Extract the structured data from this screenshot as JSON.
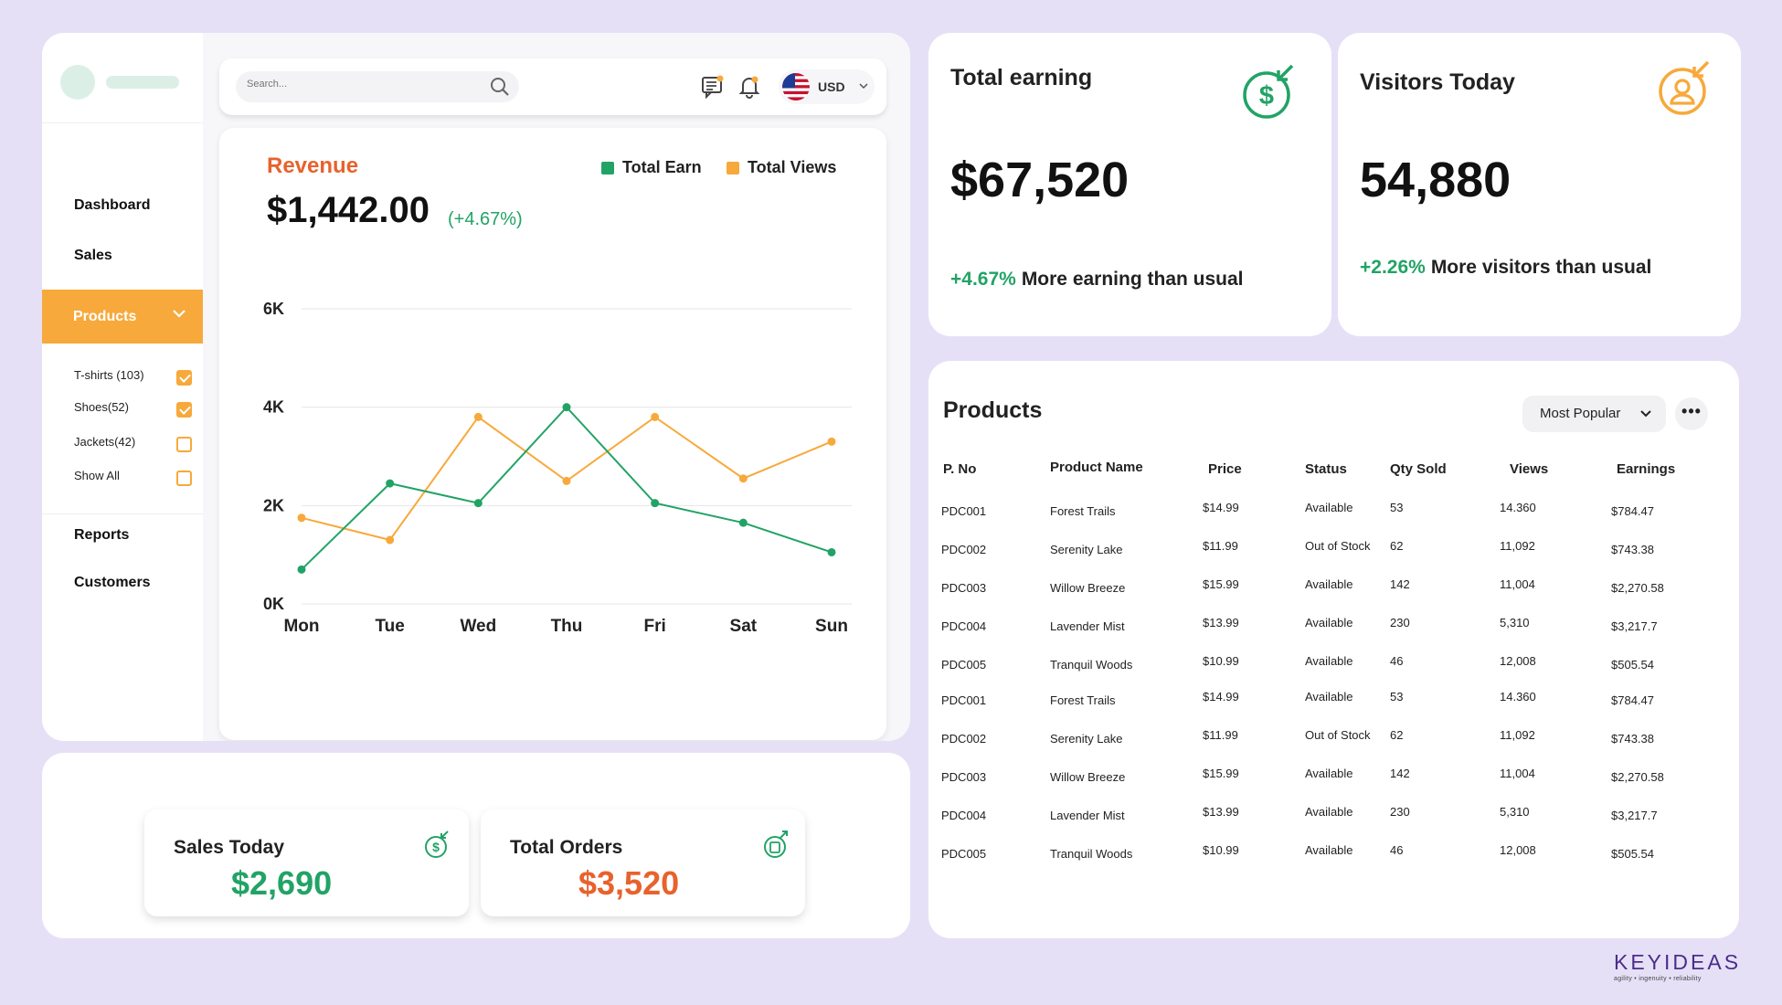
{
  "sidebar": {
    "items": [
      {
        "label": "Dashboard"
      },
      {
        "label": "Sales"
      },
      {
        "label": "Products"
      },
      {
        "label": "Reports"
      },
      {
        "label": "Customers"
      }
    ],
    "filters": [
      {
        "label": "T-shirts (103)",
        "checked": true
      },
      {
        "label": "Shoes(52)",
        "checked": true
      },
      {
        "label": "Jackets(42)",
        "checked": false
      },
      {
        "label": "Show All",
        "checked": false
      }
    ]
  },
  "topbar": {
    "search_placeholder": "Search...",
    "currency": "USD",
    "icons": [
      "search-icon",
      "chat-icon",
      "bell-icon",
      "us-flag-icon",
      "chevron-down-icon"
    ]
  },
  "revenue": {
    "title": "Revenue",
    "value": "$1,442.00",
    "change": "(+4.67%)",
    "legend": [
      "Total Earn",
      "Total Views"
    ]
  },
  "chart_data": {
    "type": "line",
    "title": "Revenue",
    "categories": [
      "Mon",
      "Tue",
      "Wed",
      "Thu",
      "Fri",
      "Sat",
      "Sun"
    ],
    "yticks": [
      "6K",
      "4K",
      "2K",
      "0K"
    ],
    "ylim": [
      0,
      6000
    ],
    "grid": true,
    "legend_position": "top-right",
    "series": [
      {
        "name": "Total Earn",
        "color": "#22a366",
        "values": [
          700,
          2450,
          2050,
          4000,
          2050,
          1650,
          1050
        ]
      },
      {
        "name": "Total Views",
        "color": "#f7a93b",
        "values": [
          1750,
          1300,
          3800,
          2500,
          3800,
          2550,
          3300
        ]
      }
    ]
  },
  "sales_today": {
    "title": "Sales Today",
    "value": "$2,690",
    "color": "#22a366"
  },
  "total_orders": {
    "title": "Total Orders",
    "value": "$3,520",
    "color": "#e8622c"
  },
  "total_earning": {
    "title": "Total earning",
    "value": "$67,520",
    "pct": "+4.67%",
    "note": "More earning than usual",
    "icon_color": "#22a366"
  },
  "visitors_today": {
    "title": "Visitors Today",
    "value": "54,880",
    "pct": "+2.26%",
    "note": "More visitors than usual",
    "icon_color": "#f7a93b"
  },
  "products": {
    "title": "Products",
    "sort_label": "Most Popular",
    "columns": [
      "P. No",
      "Product Name",
      "Price",
      "Status",
      "Qty Sold",
      "Views",
      "Earnings"
    ],
    "rows": [
      [
        "PDC001",
        "Forest Trails",
        "$14.99",
        "Available",
        "53",
        "14.360",
        "$784.47"
      ],
      [
        "PDC002",
        "Serenity Lake",
        "$11.99",
        "Out of Stock",
        "62",
        "11,092",
        "$743.38"
      ],
      [
        "PDC003",
        "Willow Breeze",
        "$15.99",
        "Available",
        "142",
        "11,004",
        "$2,270.58"
      ],
      [
        "PDC004",
        "Lavender Mist",
        "$13.99",
        "Available",
        "230",
        "5,310",
        "$3,217.7"
      ],
      [
        "PDC005",
        "Tranquil Woods",
        "$10.99",
        "Available",
        "46",
        "12,008",
        "$505.54"
      ],
      [
        "PDC001",
        "Forest Trails",
        "$14.99",
        "Available",
        "53",
        "14.360",
        "$784.47"
      ],
      [
        "PDC002",
        "Serenity Lake",
        "$11.99",
        "Out of Stock",
        "62",
        "11,092",
        "$743.38"
      ],
      [
        "PDC003",
        "Willow Breeze",
        "$15.99",
        "Available",
        "142",
        "11,004",
        "$2,270.58"
      ],
      [
        "PDC004",
        "Lavender Mist",
        "$13.99",
        "Available",
        "230",
        "5,310",
        "$3,217.7"
      ],
      [
        "PDC005",
        "Tranquil Woods",
        "$10.99",
        "Available",
        "46",
        "12,008",
        "$505.54"
      ]
    ]
  },
  "brand": {
    "name": "KEYIDEAS",
    "tagline": "agility • ingenuity • reliability"
  },
  "colors": {
    "accent_orange": "#f7a93b",
    "green": "#22a366",
    "red_orange": "#e8622c",
    "background": "#e6e0f7"
  }
}
